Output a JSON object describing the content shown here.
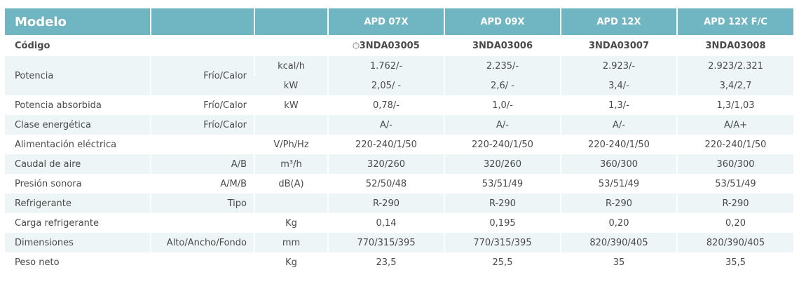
{
  "header": {
    "title": "Modelo",
    "models": [
      "APD 07X",
      "APD 09X",
      "APD 12X",
      "APD 12X F/C"
    ]
  },
  "codigo": {
    "label": "Código",
    "icon": "clock-icon",
    "values": [
      "3NDA03005",
      "3NDA03006",
      "3NDA03007",
      "3NDA03008"
    ]
  },
  "potencia": {
    "label": "Potencia",
    "sub": "Frío/Calor",
    "unit1": "kcal/h",
    "unit2": "kW",
    "values1": [
      "1.762/-",
      "2.235/-",
      "2.923/-",
      "2.923/2.321"
    ],
    "values2": [
      "2,05/ -",
      "2,6/ -",
      "3,4/-",
      "3,4/2,7"
    ]
  },
  "rows": [
    {
      "label": "Potencia absorbida",
      "sub": "Frío/Calor",
      "unit": "kW",
      "values": [
        "0,78/-",
        "1,0/-",
        "1,3/-",
        "1,3/1,03"
      ]
    },
    {
      "label": "Clase energética",
      "sub": "Frío/Calor",
      "unit": "",
      "values": [
        "A/-",
        "A/-",
        "A/-",
        "A/A+"
      ]
    },
    {
      "label": "Alimentación eléctrica",
      "sub": "",
      "unit": "V/Ph/Hz",
      "values": [
        "220-240/1/50",
        "220-240/1/50",
        "220-240/1/50",
        "220-240/1/50"
      ]
    },
    {
      "label": "Caudal de aire",
      "sub": "A/B",
      "unit": "m³/h",
      "values": [
        "320/260",
        "320/260",
        "360/300",
        "360/300"
      ]
    },
    {
      "label": "Presión sonora",
      "sub": "A/M/B",
      "unit": "dB(A)",
      "values": [
        "52/50/48",
        "53/51/49",
        "53/51/49",
        "53/51/49"
      ]
    },
    {
      "label": "Refrigerante",
      "sub": "Tipo",
      "unit": "",
      "values": [
        "R-290",
        "R-290",
        "R-290",
        "R-290"
      ]
    },
    {
      "label": "Carga refrigerante",
      "sub": "",
      "unit": "Kg",
      "values": [
        "0,14",
        "0,195",
        "0,20",
        "0,20"
      ]
    },
    {
      "label": "Dimensiones",
      "sub": "Alto/Ancho/Fondo",
      "unit": "mm",
      "values": [
        "770/315/395",
        "770/315/395",
        "820/390/405",
        "820/390/405"
      ]
    },
    {
      "label": "Peso neto",
      "sub": "",
      "unit": "Kg",
      "values": [
        "23,5",
        "25,5",
        "35",
        "35,5"
      ]
    }
  ],
  "colors": {
    "header": "#70b5c2",
    "stripe": "#eef5f7"
  }
}
